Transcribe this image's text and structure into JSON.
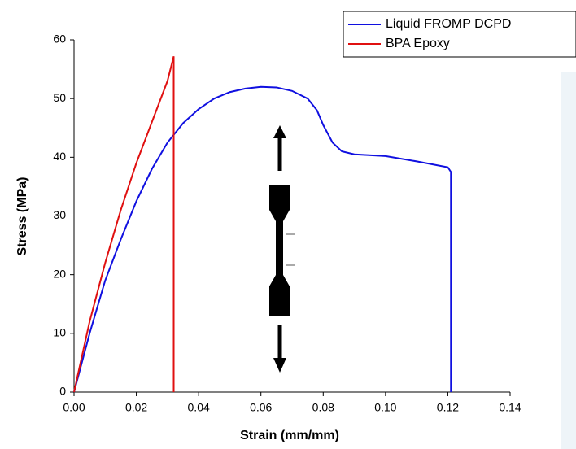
{
  "chart_data": {
    "type": "line",
    "x_label": "Strain (mm/mm)",
    "y_label": "Stress (MPa)",
    "xlim": [
      0,
      0.14
    ],
    "ylim": [
      0,
      60
    ],
    "xticks": [
      {
        "value": 0,
        "label": "0.00"
      },
      {
        "value": 0.02,
        "label": "0.02"
      },
      {
        "value": 0.04,
        "label": "0.04"
      },
      {
        "value": 0.06,
        "label": "0.06"
      },
      {
        "value": 0.08,
        "label": "0.08"
      },
      {
        "value": 0.1,
        "label": "0.10"
      },
      {
        "value": 0.12,
        "label": "0.12"
      },
      {
        "value": 0.14,
        "label": "0.14"
      }
    ],
    "yticks": [
      0,
      10,
      20,
      30,
      40,
      50,
      60
    ],
    "series": [
      {
        "name": "Liquid FROMP DCPD",
        "color": "#1010e0",
        "x": [
          0,
          0.005,
          0.01,
          0.015,
          0.02,
          0.025,
          0.03,
          0.035,
          0.04,
          0.045,
          0.05,
          0.055,
          0.06,
          0.065,
          0.07,
          0.075,
          0.078,
          0.08,
          0.083,
          0.086,
          0.09,
          0.1,
          0.11,
          0.12,
          0.121,
          0.121
        ],
        "values": [
          0,
          10,
          19,
          26,
          32.5,
          38,
          42.5,
          45.8,
          48.2,
          50,
          51.1,
          51.7,
          52,
          51.9,
          51.3,
          50,
          48,
          45.5,
          42.5,
          41,
          40.5,
          40.2,
          39.3,
          38.3,
          37.5,
          0
        ]
      },
      {
        "name": "BPA Epoxy",
        "color": "#e01010",
        "x": [
          0,
          0.005,
          0.01,
          0.015,
          0.02,
          0.025,
          0.03,
          0.032,
          0.032
        ],
        "values": [
          0,
          12,
          22,
          31,
          39,
          46,
          53,
          57.2,
          0
        ]
      }
    ]
  }
}
